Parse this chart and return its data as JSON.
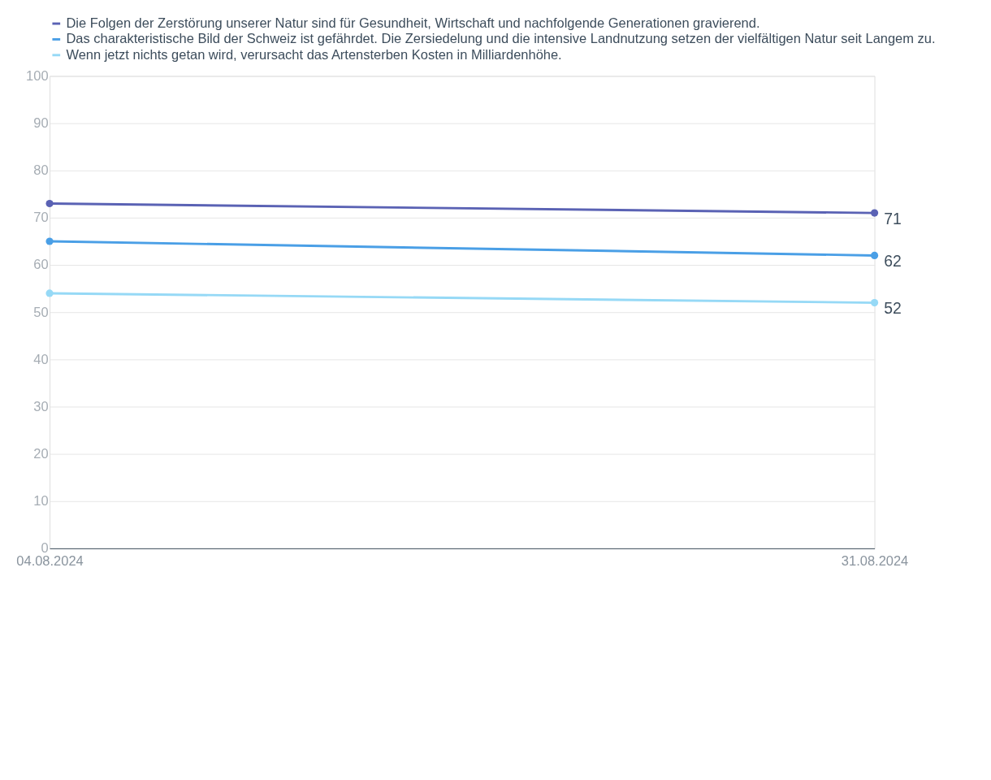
{
  "chart_data": {
    "type": "line",
    "x": [
      "2024-08-04",
      "2024-08-31"
    ],
    "series": [
      {
        "name": "Die Folgen der Zerstörung unserer Natur sind für Gesundheit, Wirtschaft und nachfolgende Generationen gravierend.",
        "color": "#5a62b4",
        "values": [
          73,
          71
        ],
        "value_labels": [
          null,
          "71"
        ]
      },
      {
        "name": "Das charakteristische Bild der Schweiz ist gefährdet. Die Zersiedelung und die intensive Landnutzung setzen der vielfältigen Natur seit Langem zu.",
        "color": "#4a9fe6",
        "values": [
          65,
          62
        ],
        "value_labels": [
          null,
          "62"
        ]
      },
      {
        "name": "Wenn jetzt nichts getan wird, verursacht das Artensterben Kosten in Milliardenhöhe.",
        "color": "#96d9f6",
        "values": [
          54,
          52
        ],
        "value_labels": [
          null,
          "52"
        ]
      }
    ],
    "xlim": [
      "2024-08-04",
      "2024-08-31"
    ],
    "xticks": [
      {
        "value": "2024-08-04",
        "label": "04.08.2024"
      },
      {
        "value": "2024-08-31",
        "label": "31.08.2024"
      }
    ],
    "ylim": [
      0,
      100
    ],
    "yticks": [
      0,
      10,
      20,
      30,
      40,
      50,
      60,
      70,
      80,
      90,
      100
    ],
    "grid": "y",
    "legend": "top",
    "marker": "circle",
    "line_style": "solid"
  }
}
